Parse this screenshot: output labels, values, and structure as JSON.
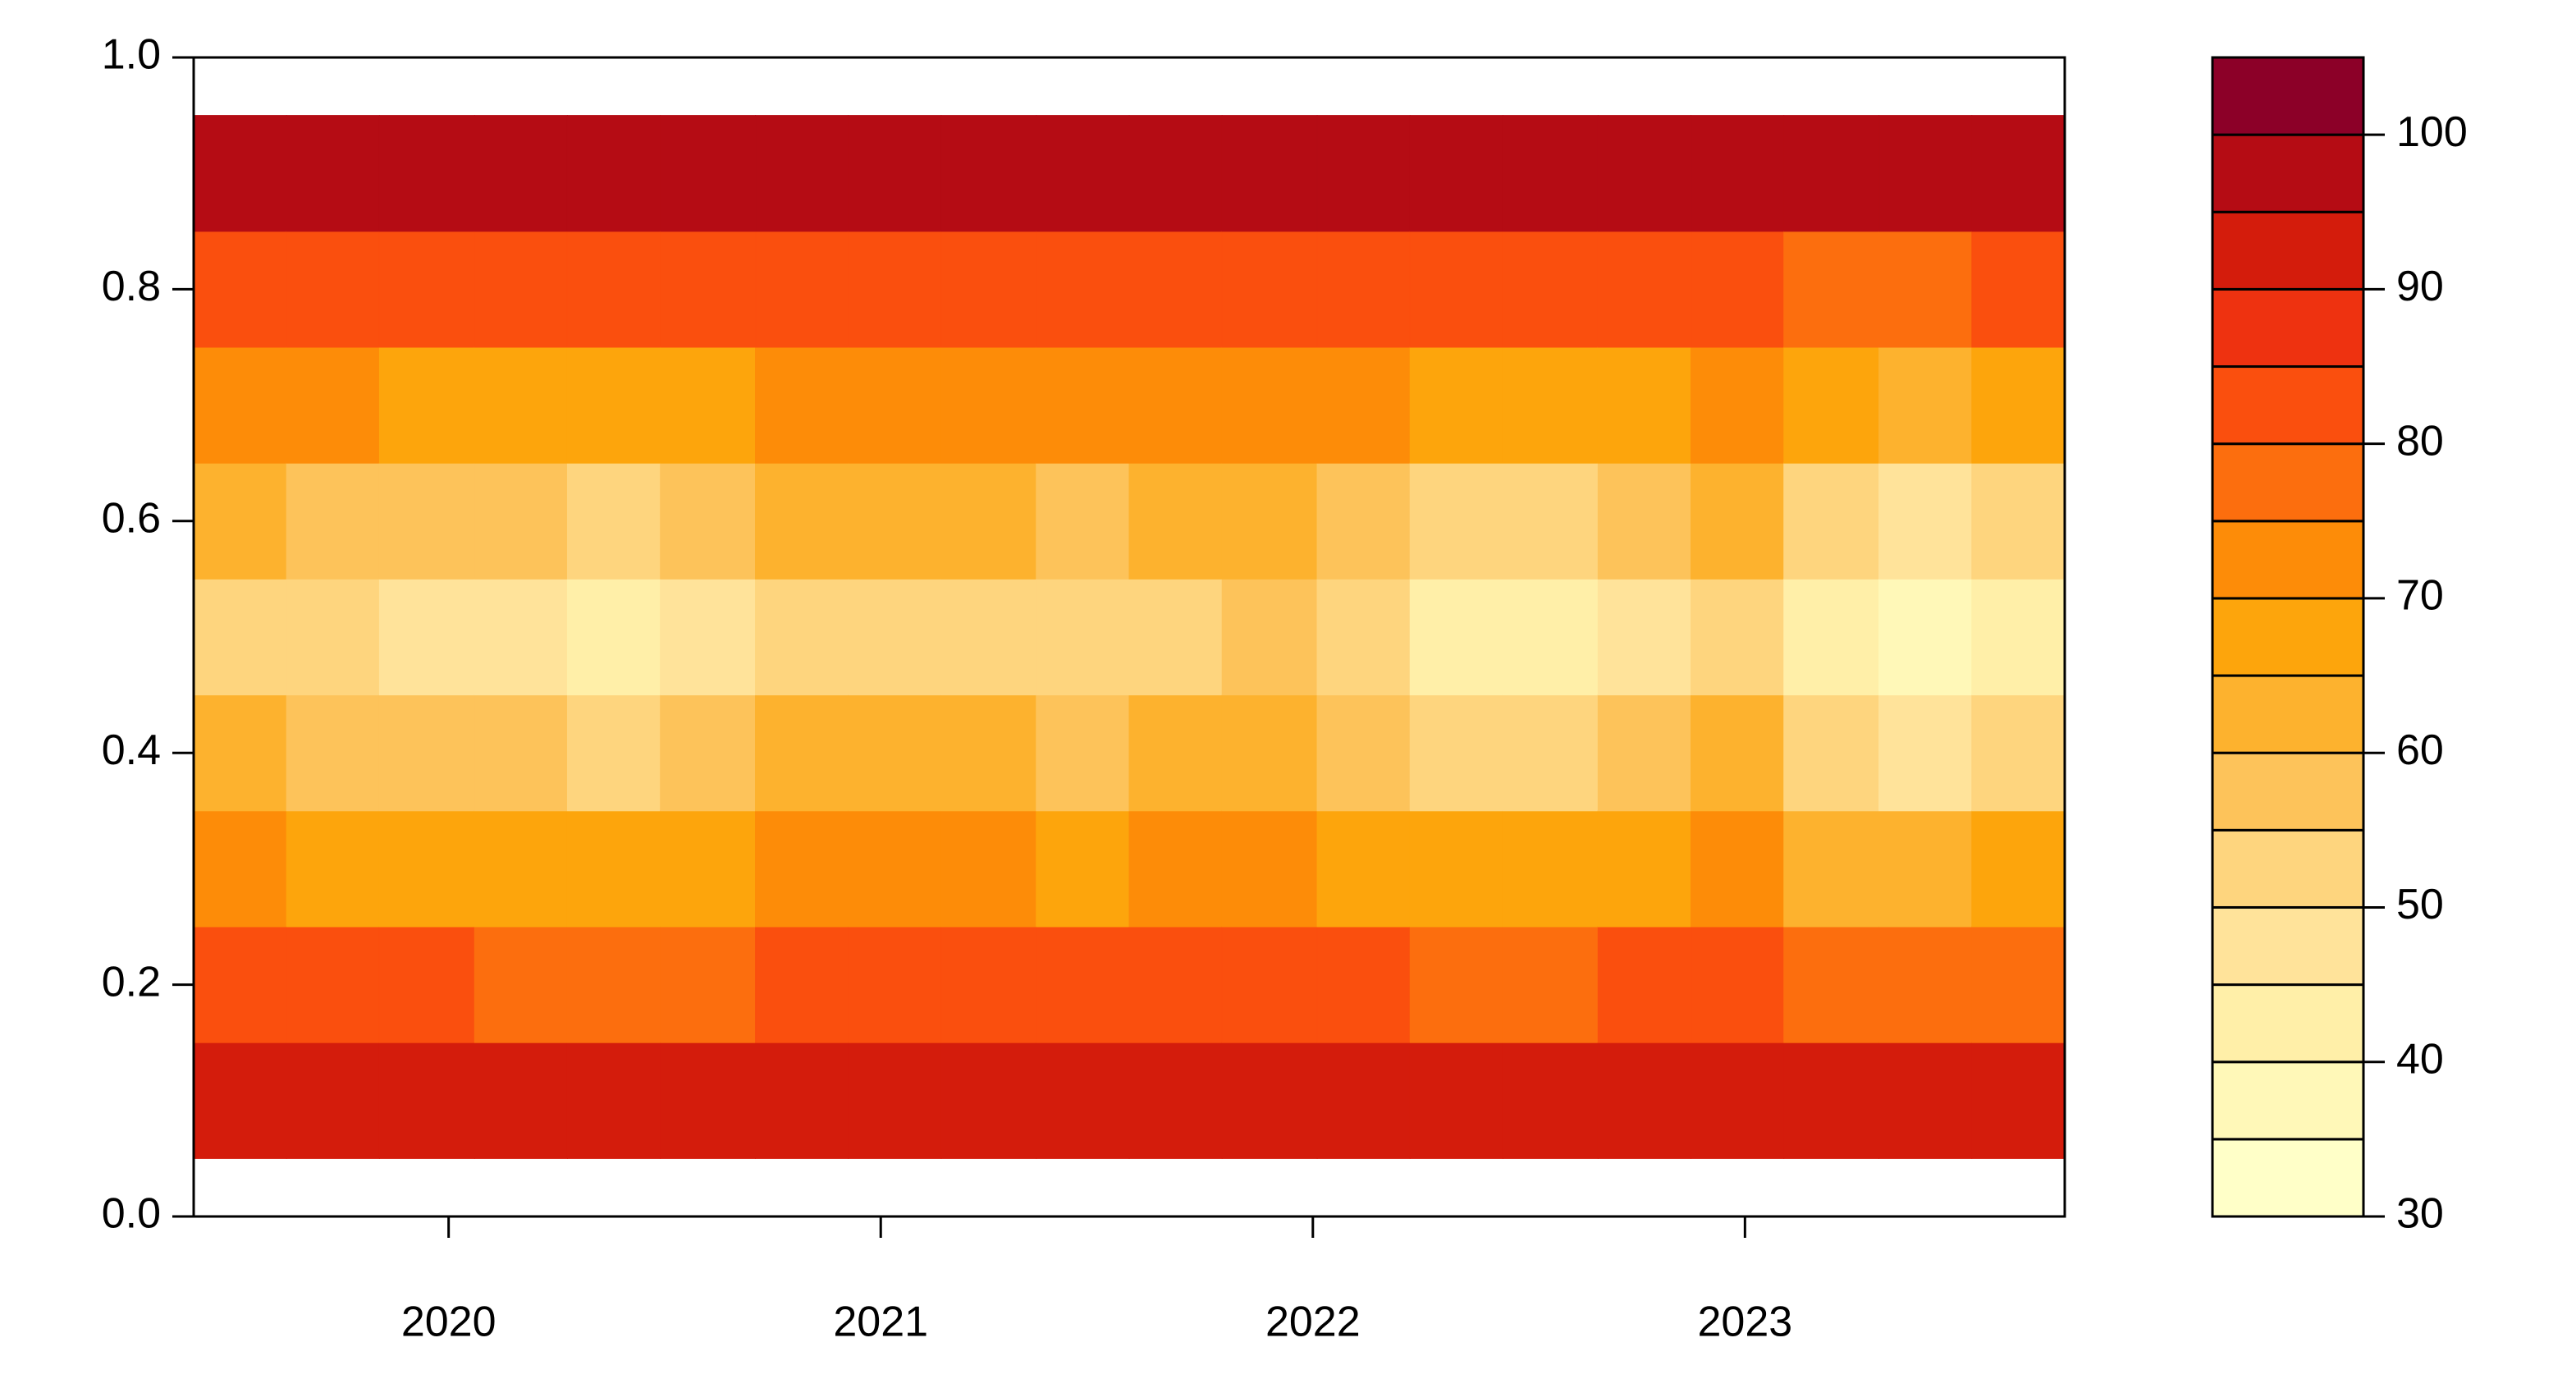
{
  "chart_data": {
    "type": "filled_contour",
    "x": [
      2019.52,
      2019.73,
      2019.95,
      2020.17,
      2020.38,
      2020.6,
      2020.82,
      2021.03,
      2021.25,
      2021.47,
      2021.68,
      2021.9,
      2022.12,
      2022.33,
      2022.55,
      2022.77,
      2022.98,
      2023.2,
      2023.42,
      2023.63
    ],
    "y": [
      0.1,
      0.2,
      0.3,
      0.4,
      0.5,
      0.6,
      0.7,
      0.8,
      0.9
    ],
    "z": [
      [
        92,
        81,
        70,
        60,
        52,
        61,
        71,
        83,
        95
      ],
      [
        92,
        80,
        69,
        58,
        50,
        59,
        70,
        82,
        95
      ],
      [
        92,
        80,
        68,
        57,
        48,
        57,
        69,
        82,
        95
      ],
      [
        92,
        79,
        67,
        55,
        46,
        56,
        68,
        81,
        95
      ],
      [
        92,
        78,
        65,
        52,
        42,
        53,
        66,
        80,
        95
      ],
      [
        92,
        79,
        67,
        55,
        46,
        56,
        68,
        81,
        95
      ],
      [
        92,
        81,
        71,
        62,
        54,
        62,
        72,
        83,
        95
      ],
      [
        92,
        81,
        70,
        60,
        52,
        61,
        71,
        83,
        95
      ],
      [
        92,
        81,
        70,
        60,
        52,
        61,
        71,
        83,
        95
      ],
      [
        92,
        80,
        69,
        58,
        50,
        59,
        70,
        82,
        95
      ],
      [
        92,
        81,
        70,
        60,
        52,
        61,
        71,
        83,
        95
      ],
      [
        92,
        84,
        72,
        63,
        56,
        64,
        74,
        84,
        95
      ],
      [
        92,
        80,
        69,
        58,
        50,
        59,
        70,
        82,
        95
      ],
      [
        92,
        79,
        66,
        54,
        44,
        54,
        67,
        81,
        95
      ],
      [
        92,
        78,
        65,
        52,
        42,
        53,
        66,
        80,
        95
      ],
      [
        92,
        80,
        68,
        57,
        48,
        57,
        69,
        82,
        95
      ],
      [
        92,
        81,
        71,
        62,
        54,
        62,
        72,
        83,
        95
      ],
      [
        92,
        77,
        63,
        50,
        40,
        51,
        65,
        79,
        95
      ],
      [
        92,
        76,
        61,
        47,
        36,
        48,
        61,
        78,
        95
      ],
      [
        92,
        78,
        65,
        52,
        42,
        53,
        66,
        80,
        95
      ]
    ],
    "xlim": [
      2019.41,
      2023.74
    ],
    "xticks": [
      2020,
      2021,
      2022,
      2023
    ],
    "ylim": [
      0,
      1
    ],
    "yticks": [
      {
        "value": 0,
        "label": "0.0"
      },
      0.2,
      0.4,
      0.6,
      0.8,
      {
        "value": 1,
        "label": "1.0"
      }
    ],
    "levels": [
      30,
      35,
      40,
      45,
      50,
      55,
      60,
      65,
      70,
      75,
      80,
      85,
      90,
      95,
      100,
      105
    ],
    "colors": [
      "#FFFFC8",
      "#FFF8B8",
      "#FFEFA8",
      "#FFE39A",
      "#FED57E",
      "#FDC35A",
      "#FDB22E",
      "#FDA50C",
      "#FD8C08",
      "#FC6E0E",
      "#FA4F0E",
      "#EE3210",
      "#D41C0C",
      "#B50C14",
      "#8C0028"
    ],
    "colorbar_ticks": [
      30,
      40,
      50,
      60,
      70,
      80,
      90,
      100
    ]
  }
}
